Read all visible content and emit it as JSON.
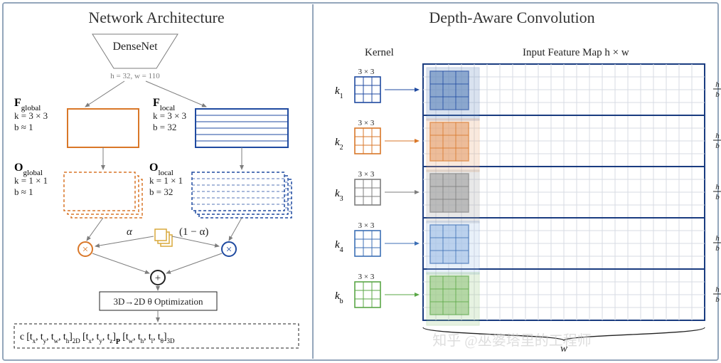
{
  "titles": {
    "left": "Network Architecture",
    "right": "Depth-Aware Convolution",
    "fontsize": 22,
    "color": "#333333"
  },
  "colors": {
    "divider": "#94a6bb",
    "orange": "#d97728",
    "blue": "#1f4aa0",
    "darkblue": "#1a3c80",
    "grid": "#d7dbe3",
    "text": "#222222",
    "gray": "#7d7d7d",
    "green": "#5aa746",
    "yellow": "#d9a93b",
    "watermark": "#c8c8c8"
  },
  "left": {
    "densenet": {
      "label": "DenseNet",
      "sublabel": "h = 32, w = 110"
    },
    "fglobal": {
      "title": "F",
      "sub": "global",
      "lines": [
        "k = 3 × 3",
        "b ≈ 1"
      ]
    },
    "flocal": {
      "title": "F",
      "sub": "local",
      "lines": [
        "k = 3 × 3",
        "b = 32"
      ]
    },
    "oglobal": {
      "title": "O",
      "sub": "global",
      "lines": [
        "k = 1 × 1",
        "b ≈ 1"
      ]
    },
    "olocal": {
      "title": "O",
      "sub": "local",
      "lines": [
        "k = 1 × 1",
        "b = 32"
      ]
    },
    "alpha": "α",
    "one_minus_alpha": "(1 − α)",
    "opt_box": "3D→2D θ Optimization",
    "output": "c   [t_x, t_y, t_w, t_h]_{2D}   [t_x, t_y, t_z]_P   [t_w, t_h, t_l, t_θ]_{3D}"
  },
  "right": {
    "kernel_label": "Kernel",
    "input_label": "Input Feature Map   h × w",
    "kernel_size": "3 × 3",
    "blocks": [
      {
        "name": "k₁",
        "fill": "#6b8fc1",
        "stroke": "#1f4aa0"
      },
      {
        "name": "k₂",
        "fill": "#e8a97d",
        "stroke": "#d97728"
      },
      {
        "name": "k₃",
        "fill": "#a8a8a8",
        "stroke": "#7d7d7d"
      },
      {
        "name": "k₄",
        "fill": "#a8c5e8",
        "stroke": "#3c6fb5"
      },
      {
        "name": "k_b",
        "fill": "#a0cc8c",
        "stroke": "#5aa746"
      }
    ],
    "row_label": "(h / b) × w",
    "brace_label": "b",
    "bottom_brace": "w",
    "watermark": "知乎 @巫婆塔里的工程师"
  }
}
